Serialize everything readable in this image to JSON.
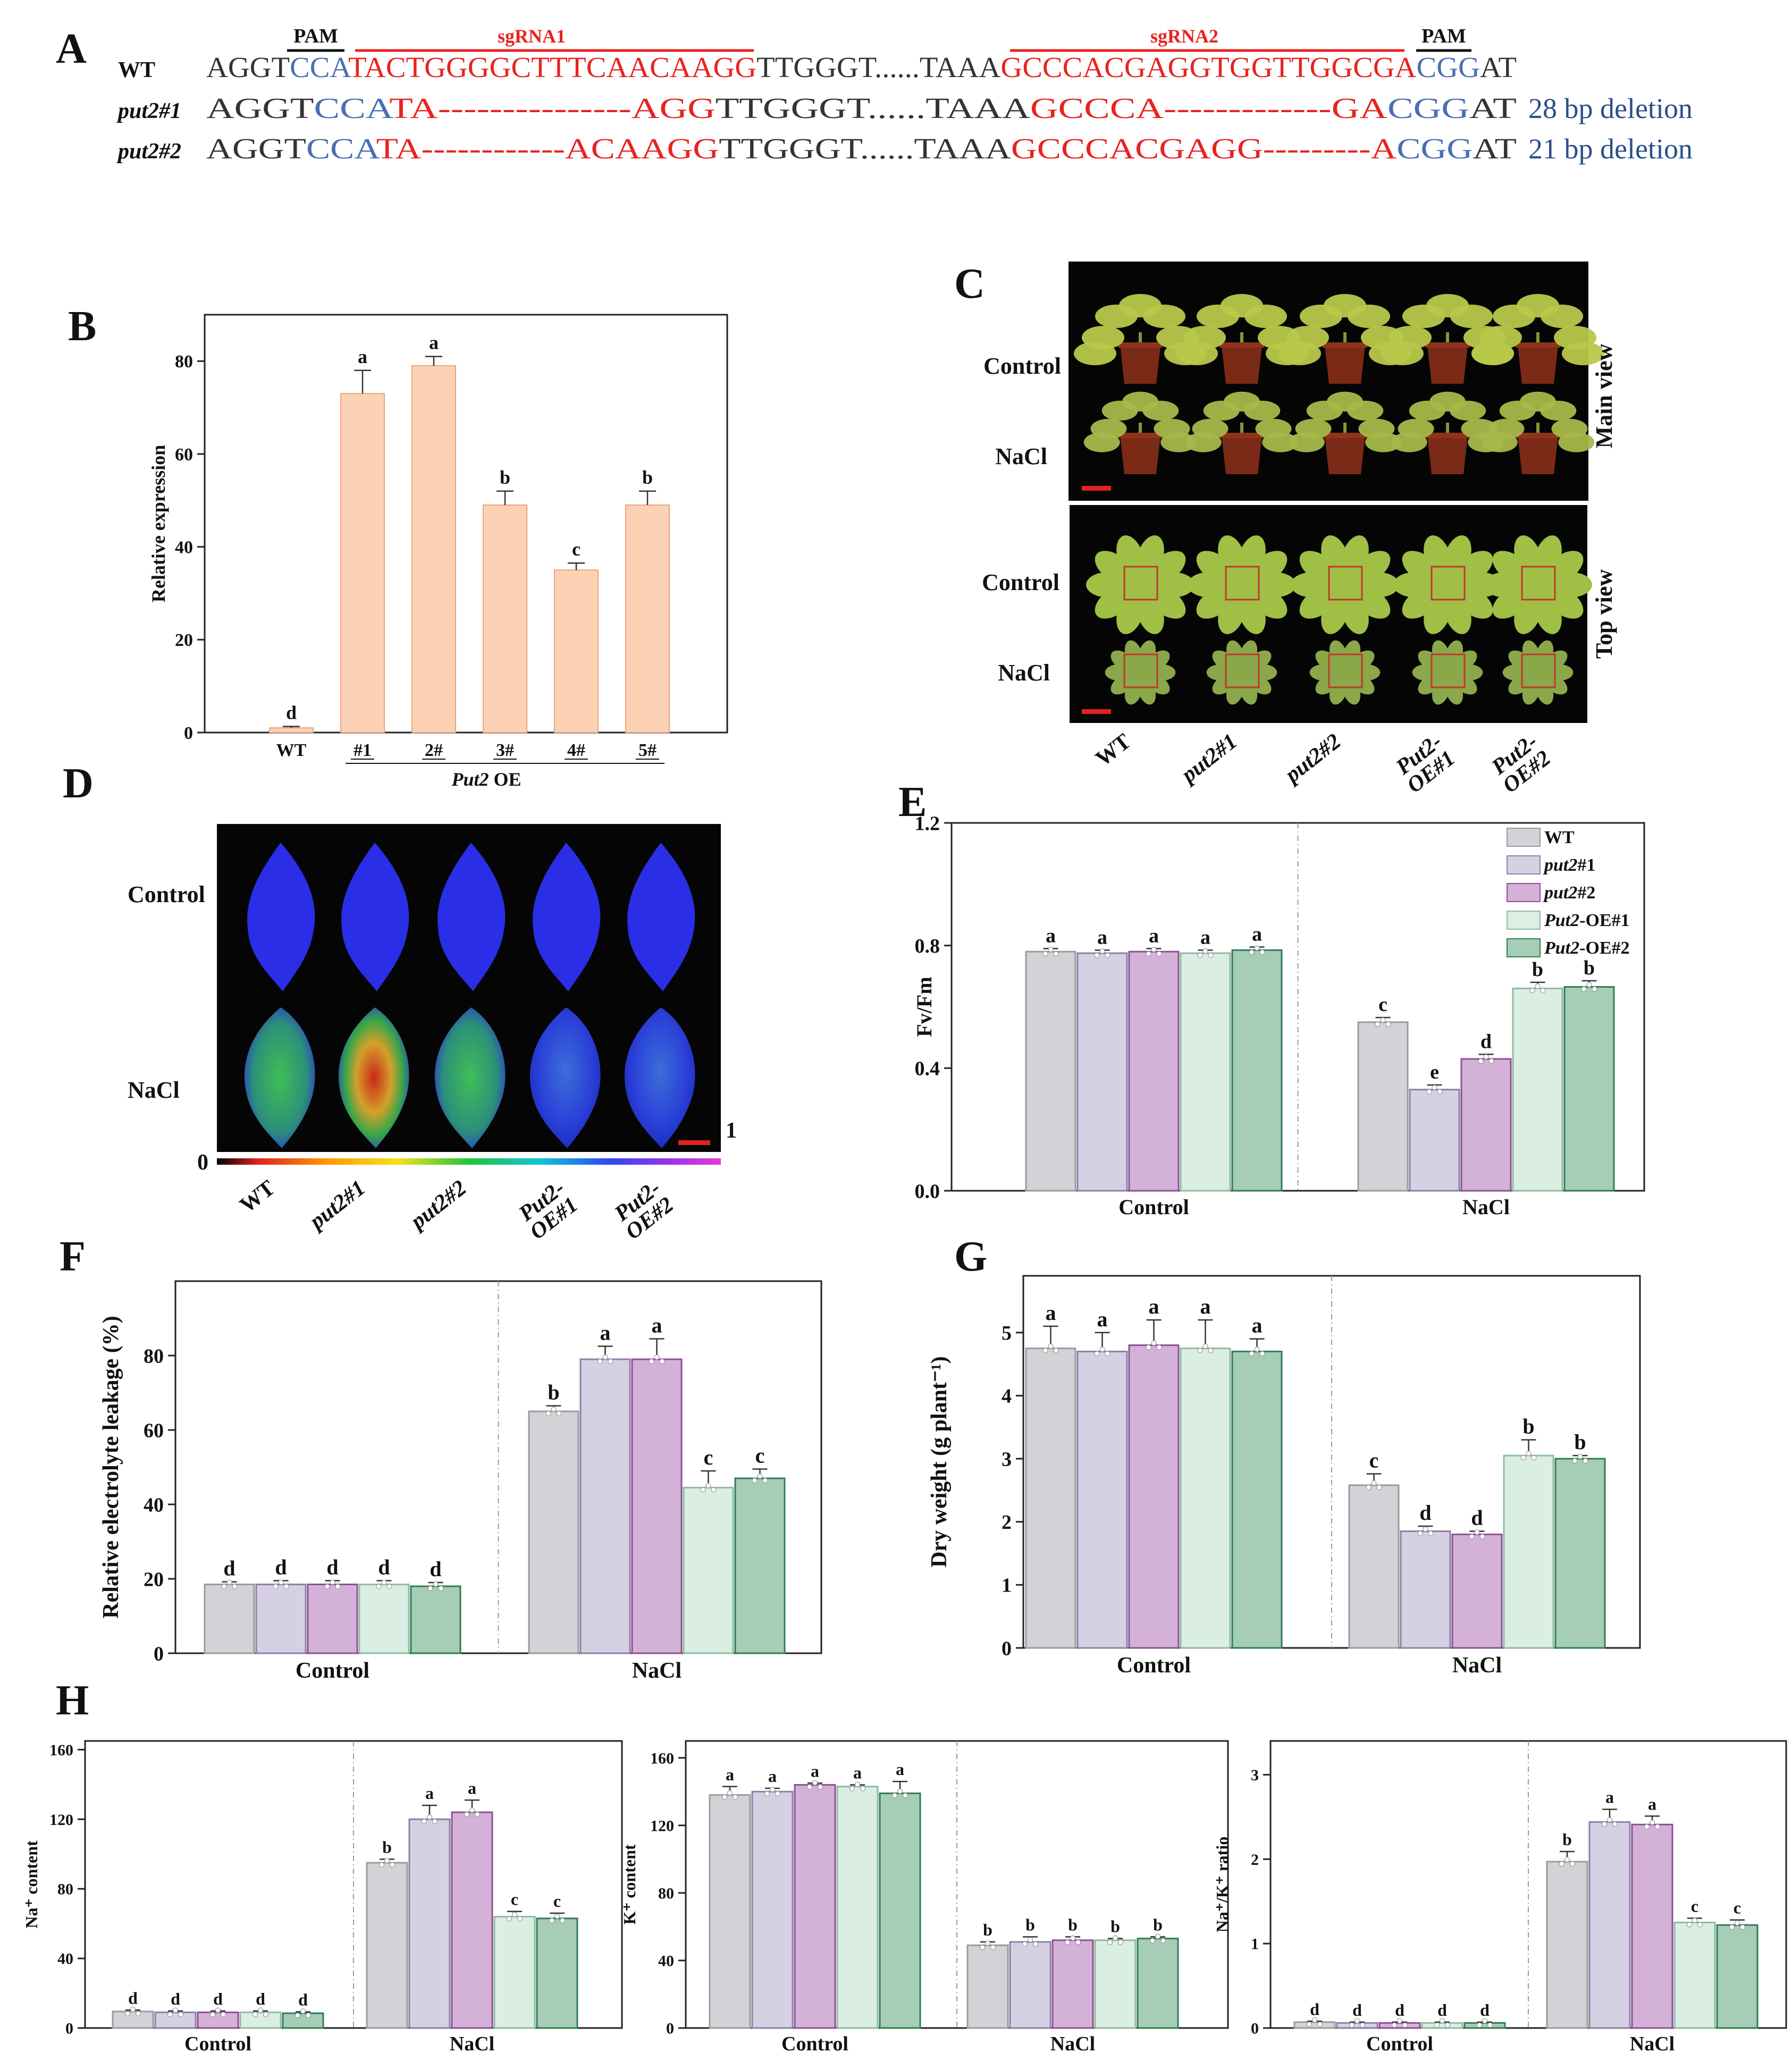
{
  "panel_labels": {
    "A": "A",
    "B": "B",
    "C": "C",
    "D": "D",
    "E": "E",
    "F": "F",
    "G": "G",
    "H": "H"
  },
  "sequences": {
    "pam_label": "PAM",
    "sgrna1_label": "sgRNA1",
    "sgrna2_label": "sgRNA2",
    "rows": [
      {
        "label": "WT",
        "italic": false,
        "note": "",
        "segments": [
          [
            "AGGT",
            "#333333"
          ],
          [
            "CCA",
            "#4a6fb3"
          ],
          [
            "TACTGGGGCTTTCAACAAGG",
            "#e8231f"
          ],
          [
            "TTGGGT",
            "#333333"
          ],
          [
            "......",
            "#333333"
          ],
          [
            "TAAA",
            "#333333"
          ],
          [
            "GCCCACGAGGTGGTTGGCGA",
            "#e8231f"
          ],
          [
            "CGG",
            "#4a6fb3"
          ],
          [
            "AT",
            "#333333"
          ]
        ]
      },
      {
        "label": "put2#1",
        "italic": true,
        "note": "28 bp deletion",
        "segments": [
          [
            "AGGT",
            "#333333"
          ],
          [
            "CCA",
            "#4a6fb3"
          ],
          [
            "TA",
            "#e8231f"
          ],
          [
            "---------------",
            "#e8231f"
          ],
          [
            "AGG",
            "#e8231f"
          ],
          [
            "TTGGGT",
            "#333333"
          ],
          [
            "......",
            "#333333"
          ],
          [
            "TAAA",
            "#333333"
          ],
          [
            "GCCCA",
            "#e8231f"
          ],
          [
            "-------------",
            "#e8231f"
          ],
          [
            "GA",
            "#e8231f"
          ],
          [
            "CGG",
            "#4a6fb3"
          ],
          [
            "AT",
            "#333333"
          ]
        ]
      },
      {
        "label": "put2#2",
        "italic": true,
        "note": "21 bp deletion",
        "segments": [
          [
            "AGGT",
            "#333333"
          ],
          [
            "CCA",
            "#4a6fb3"
          ],
          [
            "TA",
            "#e8231f"
          ],
          [
            "------------",
            "#e8231f"
          ],
          [
            "ACAAGG",
            "#e8231f"
          ],
          [
            "TTGGGT",
            "#333333"
          ],
          [
            "......",
            "#333333"
          ],
          [
            "TAAA",
            "#333333"
          ],
          [
            "GCCCACGAGG",
            "#e8231f"
          ],
          [
            "---------",
            "#e8231f"
          ],
          [
            "A",
            "#e8231f"
          ],
          [
            "CGG",
            "#4a6fb3"
          ],
          [
            "AT",
            "#333333"
          ]
        ]
      }
    ]
  },
  "photo_c": {
    "main_view": "Main view",
    "top_view": "Top view",
    "rows": [
      "Control",
      "NaCl",
      "Control",
      "NaCl"
    ],
    "genotypes": [
      "WT",
      "put2#1",
      "put2#2",
      "Put2-\nOE#1",
      "Put2-\nOE#2"
    ]
  },
  "photo_d": {
    "rows": [
      "Control",
      "NaCl"
    ],
    "scale_min": "0",
    "scale_max": "1",
    "genotypes": [
      "WT",
      "put2#1",
      "put2#2",
      "Put2-\nOE#1",
      "Put2-\nOE#2"
    ]
  },
  "legend": {
    "entries": [
      {
        "label": "WT",
        "color": "#d2d3d6",
        "stroke": "#9a9b9e"
      },
      {
        "label": "put2#1",
        "color": "#d6d0e3",
        "stroke": "#8c80a8"
      },
      {
        "label": "put2#2",
        "color": "#d4b2d8",
        "stroke": "#8e4f97"
      },
      {
        "label": "Put2-OE#1",
        "color": "#dbeee3",
        "stroke": "#8fbba1"
      },
      {
        "label": "Put2-OE#2",
        "color": "#a6cdb6",
        "stroke": "#2f7d55"
      }
    ]
  },
  "chart_data": [
    {
      "id": "B",
      "type": "bar",
      "title": "",
      "xlabel": "",
      "ylabel": "Relative expression",
      "categories": [
        "WT",
        "#1",
        "2#",
        "3#",
        "4#",
        "5#"
      ],
      "group_label": "Put2 OE",
      "values": [
        1,
        73,
        79,
        49,
        35,
        49
      ],
      "errors": [
        0.3,
        5,
        2,
        3,
        1.5,
        3
      ],
      "letters": [
        "d",
        "a",
        "a",
        "b",
        "c",
        "b"
      ],
      "ylim": [
        0,
        90
      ],
      "yticks": [
        0,
        20,
        40,
        60,
        80
      ],
      "bar_color": "#fcd2b4"
    },
    {
      "id": "E",
      "type": "bar",
      "ylabel": "Fv/Fm",
      "groups": [
        "Control",
        "NaCl"
      ],
      "series_names": [
        "WT",
        "put2#1",
        "put2#2",
        "Put2-OE#1",
        "Put2-OE#2"
      ],
      "values": [
        [
          0.78,
          0.775,
          0.78,
          0.775,
          0.785
        ],
        [
          0.55,
          0.33,
          0.43,
          0.66,
          0.665
        ]
      ],
      "errors": [
        [
          0.01,
          0.01,
          0.01,
          0.01,
          0.01
        ],
        [
          0.015,
          0.015,
          0.015,
          0.02,
          0.02
        ]
      ],
      "letters": [
        [
          "a",
          "a",
          "a",
          "a",
          "a"
        ],
        [
          "c",
          "e",
          "d",
          "b",
          "b"
        ]
      ],
      "ylim": [
        0,
        1.2
      ],
      "yticks": [
        0.0,
        0.4,
        0.8,
        1.2
      ]
    },
    {
      "id": "F",
      "type": "bar",
      "ylabel": "Relative electrolyte leakage (%)",
      "groups": [
        "Control",
        "NaCl"
      ],
      "series_names": [
        "WT",
        "put2#1",
        "put2#2",
        "Put2-OE#1",
        "Put2-OE#2"
      ],
      "values": [
        [
          18.5,
          18.5,
          18.5,
          18.5,
          18
        ],
        [
          65,
          79,
          79,
          44.5,
          47
        ]
      ],
      "errors": [
        [
          0.7,
          1,
          1,
          1,
          1
        ],
        [
          1.5,
          3.5,
          5.5,
          4.5,
          2.5
        ]
      ],
      "letters": [
        [
          "d",
          "d",
          "d",
          "d",
          "d"
        ],
        [
          "b",
          "a",
          "a",
          "c",
          "c"
        ]
      ],
      "ylim": [
        0,
        100
      ],
      "yticks": [
        0,
        20,
        40,
        60,
        80
      ]
    },
    {
      "id": "G",
      "type": "bar",
      "ylabel": "Dry weight (g plant⁻¹)",
      "groups": [
        "Control",
        "NaCl"
      ],
      "series_names": [
        "WT",
        "put2#1",
        "put2#2",
        "Put2-OE#1",
        "Put2-OE#2"
      ],
      "values": [
        [
          4.75,
          4.7,
          4.8,
          4.75,
          4.7
        ],
        [
          2.58,
          1.85,
          1.8,
          3.05,
          3.0
        ]
      ],
      "errors": [
        [
          0.35,
          0.3,
          0.4,
          0.45,
          0.2
        ],
        [
          0.18,
          0.08,
          0.05,
          0.25,
          0.05
        ]
      ],
      "letters": [
        [
          "a",
          "a",
          "a",
          "a",
          "a"
        ],
        [
          "c",
          "d",
          "d",
          "b",
          "b"
        ]
      ],
      "ylim": [
        0,
        5.9
      ],
      "yticks": [
        0,
        1,
        2,
        3,
        4,
        5
      ]
    },
    {
      "id": "H1",
      "type": "bar",
      "ylabel": "Na⁺ content",
      "groups": [
        "Control",
        "NaCl"
      ],
      "series_names": [
        "WT",
        "put2#1",
        "put2#2",
        "Put2-OE#1",
        "Put2-OE#2"
      ],
      "values": [
        [
          9.5,
          9,
          9,
          9,
          8.5
        ],
        [
          95,
          120,
          124,
          64,
          63
        ]
      ],
      "errors": [
        [
          0.8,
          0.8,
          0.8,
          0.8,
          0.8
        ],
        [
          2,
          8,
          7,
          3,
          3
        ]
      ],
      "letters": [
        [
          "d",
          "d",
          "d",
          "d",
          "d"
        ],
        [
          "b",
          "a",
          "a",
          "c",
          "c"
        ]
      ],
      "ylim": [
        0,
        165
      ],
      "yticks": [
        0,
        40,
        80,
        120,
        160
      ]
    },
    {
      "id": "H2",
      "type": "bar",
      "ylabel": "K⁺ content",
      "groups": [
        "Control",
        "NaCl"
      ],
      "series_names": [
        "WT",
        "put2#1",
        "put2#2",
        "Put2-OE#1",
        "Put2-OE#2"
      ],
      "values": [
        [
          138,
          140,
          144,
          143,
          139
        ],
        [
          49,
          51,
          52,
          52,
          53
        ]
      ],
      "errors": [
        [
          5,
          2,
          1,
          1,
          7
        ],
        [
          2,
          3,
          2,
          1,
          1
        ]
      ],
      "letters": [
        [
          "a",
          "a",
          "a",
          "a",
          "a"
        ],
        [
          "b",
          "b",
          "b",
          "b",
          "b"
        ]
      ],
      "ylim": [
        0,
        170
      ],
      "yticks": [
        0,
        40,
        80,
        120,
        160
      ]
    },
    {
      "id": "H3",
      "type": "bar",
      "ylabel": "Na⁺/K⁺ ratio",
      "groups": [
        "Control",
        "NaCl"
      ],
      "series_names": [
        "WT",
        "put2#1",
        "put2#2",
        "Put2-OE#1",
        "Put2-OE#2"
      ],
      "values": [
        [
          0.07,
          0.06,
          0.06,
          0.06,
          0.06
        ],
        [
          1.97,
          2.44,
          2.41,
          1.25,
          1.22
        ]
      ],
      "errors": [
        [
          0.01,
          0.01,
          0.01,
          0.01,
          0.01
        ],
        [
          0.12,
          0.15,
          0.1,
          0.05,
          0.06
        ]
      ],
      "letters": [
        [
          "d",
          "d",
          "d",
          "d",
          "d"
        ],
        [
          "b",
          "a",
          "a",
          "c",
          "c"
        ]
      ],
      "ylim": [
        0,
        3.4
      ],
      "yticks": [
        0,
        1,
        2,
        3
      ]
    }
  ]
}
